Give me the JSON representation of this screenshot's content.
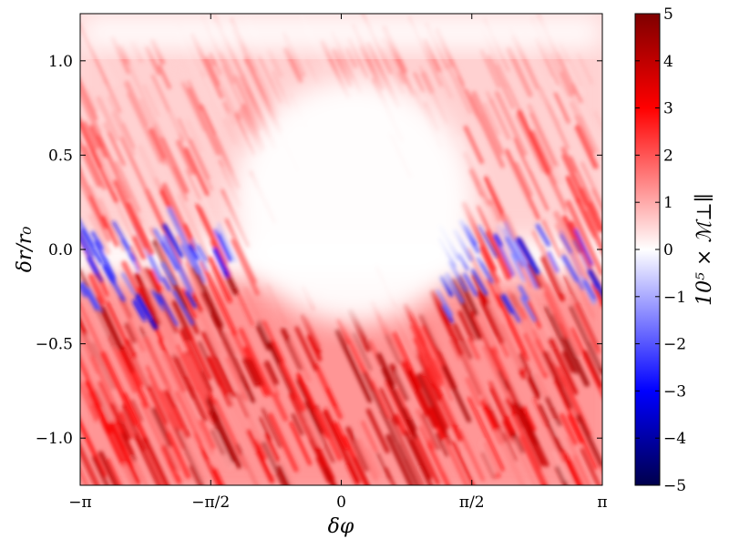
{
  "chart_data": {
    "type": "heatmap",
    "title": "",
    "xlabel": "δφ",
    "ylabel": "δr/r₀",
    "colorbar_label": "10⁵ × ℳ⊥∥",
    "xlim": [
      -3.14159,
      3.14159
    ],
    "ylim": [
      -1.25,
      1.25
    ],
    "x_ticks": [
      {
        "value": -3.14159,
        "label": "−π"
      },
      {
        "value": -1.5708,
        "label": "−π/2"
      },
      {
        "value": 0,
        "label": "0"
      },
      {
        "value": 1.5708,
        "label": "π/2"
      },
      {
        "value": 3.14159,
        "label": "π"
      }
    ],
    "y_ticks": [
      {
        "value": 1.0,
        "label": "1.0"
      },
      {
        "value": 0.5,
        "label": "0.5"
      },
      {
        "value": 0.0,
        "label": "0.0"
      },
      {
        "value": -0.5,
        "label": "−0.5"
      },
      {
        "value": -1.0,
        "label": "−1.0"
      }
    ],
    "colorbar": {
      "range": [
        -5,
        5
      ],
      "colormap": "seismic",
      "ticks": [
        {
          "value": 5,
          "label": "5"
        },
        {
          "value": 4,
          "label": "4"
        },
        {
          "value": 3,
          "label": "3"
        },
        {
          "value": 2,
          "label": "2"
        },
        {
          "value": 1,
          "label": "1"
        },
        {
          "value": 0,
          "label": "0"
        },
        {
          "value": -1,
          "label": "−1"
        },
        {
          "value": -2,
          "label": "−2"
        },
        {
          "value": -3,
          "label": "−3"
        },
        {
          "value": -4,
          "label": "−4"
        },
        {
          "value": -5,
          "label": "−5"
        }
      ]
    },
    "field_description": {
      "central_quiet_region": {
        "x_range": [
          -1.3,
          1.6
        ],
        "y_range": [
          -0.4,
          0.9
        ],
        "value": 0
      },
      "lower_band_value": 2.5,
      "upper_band_value": 1.2,
      "midplane_negative_streaks_value": -2.5
    }
  }
}
